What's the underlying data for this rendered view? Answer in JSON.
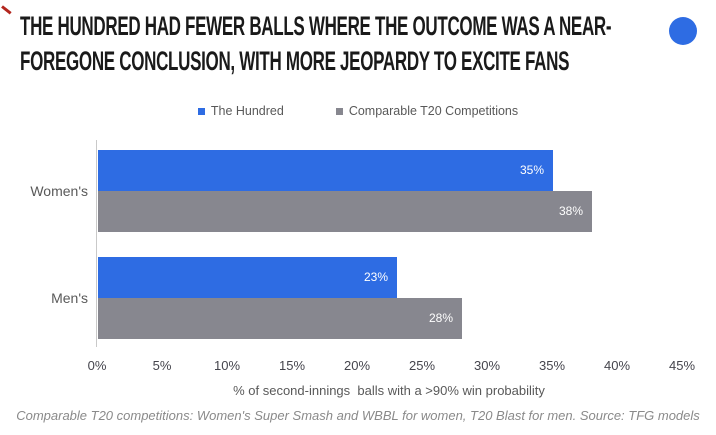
{
  "header": {
    "title_lines": [
      "THE HUNDRED HAD FEWER BALLS WHERE THE OUTCOME WAS A NEAR-",
      "FOREGONE CONCLUSION, WITH MORE JEOPARDY TO EXCITE FANS"
    ]
  },
  "colors": {
    "accent_blue": "#2E6CE3",
    "series_gray": "#87878F",
    "corner_mark_red": "#B3261E",
    "axis_line": "#C9C9C9"
  },
  "chart_data": {
    "type": "bar",
    "orientation": "horizontal",
    "title": "THE HUNDRED HAD FEWER BALLS WHERE THE OUTCOME WAS A NEAR-FOREGONE CONCLUSION, WITH MORE JEOPARDY TO EXCITE FANS",
    "categories": [
      "Women's",
      "Men's"
    ],
    "series": [
      {
        "name": "The Hundred",
        "color": "#2E6CE3",
        "values": [
          35,
          23
        ]
      },
      {
        "name": "Comparable T20 Competitions",
        "color": "#87878F",
        "values": [
          38,
          28
        ]
      }
    ],
    "value_label_suffix": "%",
    "xlabel": "% of second-innings  balls with a >90% win probability",
    "x_ticks": [
      "0%",
      "5%",
      "10%",
      "15%",
      "20%",
      "25%",
      "30%",
      "35%",
      "40%",
      "45%"
    ],
    "xlim": [
      0,
      45
    ],
    "grid": false,
    "legend_position": "top-center"
  },
  "footnote": "Comparable T20 competitions: Women's Super Smash and WBBL for women, T20 Blast for men. Source: TFG models"
}
